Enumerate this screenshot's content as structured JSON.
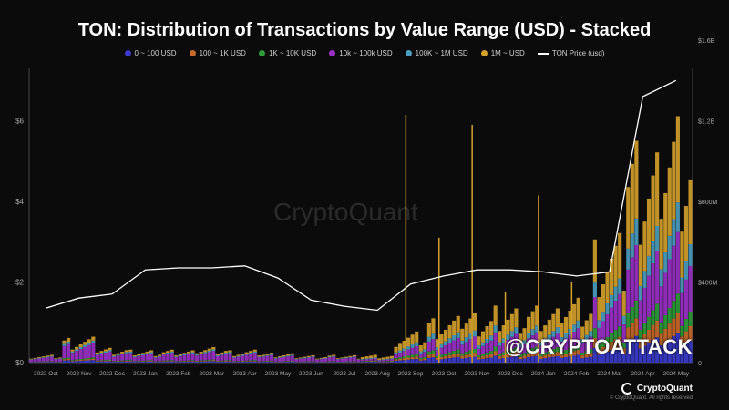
{
  "header": {
    "title": "TON: Distribution of Transactions by Value Range (USD) - Stacked"
  },
  "legend": [
    {
      "label": "0 ~ 100 USD",
      "color": "#3b3ccf"
    },
    {
      "label": "100 ~ 1K USD",
      "color": "#c96a2a"
    },
    {
      "label": "1K ~ 10K USD",
      "color": "#2f9e3a"
    },
    {
      "label": "10k ~ 100k USD",
      "color": "#9b30c8"
    },
    {
      "label": "100K ~ 1M USD",
      "color": "#4a9fc0"
    },
    {
      "label": "1M ~ USD",
      "color": "#d4a12a"
    },
    {
      "label": "TON Price (usd)",
      "color": "#ffffff"
    }
  ],
  "watermark": "CryptoQuant",
  "overlay_handle": "@CRYPTOATTACK",
  "brand": {
    "name": "CryptoQuant",
    "copyright": "© CryptoQuant. All rights reserved"
  },
  "chart_data": {
    "type": "bar",
    "x_ticks": [
      "2022 Oct",
      "2022 Nov",
      "2022 Dec",
      "2023 Jan",
      "2023 Feb",
      "2023 Mar",
      "2023 Apr",
      "2023 May",
      "2023 Jun",
      "2023 Jul",
      "2023 Aug",
      "2023 Sep",
      "2023 Oct",
      "2023 Nov",
      "2023 Dec",
      "2024 Jan",
      "2024 Feb",
      "2024 Mar",
      "2024 Apr",
      "2024 May"
    ],
    "y_left": {
      "ticks": [
        "$0",
        "$2",
        "$4",
        "$6"
      ],
      "range": [
        0,
        7.3
      ]
    },
    "y_right": {
      "ticks": [
        "0",
        "$400M",
        "$800M",
        "$1.2B",
        "$1.6B"
      ],
      "range": [
        0,
        1.46
      ]
    },
    "stacked_series_totals": {
      "unit": "USD billions (right axis)",
      "monthly": [
        0.03,
        0.1,
        0.06,
        0.05,
        0.05,
        0.06,
        0.05,
        0.04,
        0.03,
        0.03,
        0.03,
        0.12,
        0.18,
        0.2,
        0.22,
        0.22,
        0.25,
        0.5,
        0.9,
        1.0
      ]
    },
    "spikes": [
      {
        "month": "2023 Sep",
        "value": 1.23
      },
      {
        "month": "2023 Oct",
        "value": 0.62
      },
      {
        "month": "2023 Nov",
        "value": 1.18
      },
      {
        "month": "2023 Dec",
        "value": 0.35
      },
      {
        "month": "2024 Jan",
        "value": 0.83
      },
      {
        "month": "2024 Feb",
        "value": 0.4
      }
    ],
    "price": {
      "name": "TON Price (usd)",
      "points": [
        [
          "2022 Oct",
          1.35
        ],
        [
          "2022 Nov",
          1.6
        ],
        [
          "2022 Dec",
          1.7
        ],
        [
          "2023 Jan",
          2.3
        ],
        [
          "2023 Feb",
          2.35
        ],
        [
          "2023 Mar",
          2.35
        ],
        [
          "2023 Apr",
          2.4
        ],
        [
          "2023 May",
          2.1
        ],
        [
          "2023 Jun",
          1.55
        ],
        [
          "2023 Jul",
          1.4
        ],
        [
          "2023 Aug",
          1.3
        ],
        [
          "2023 Sep",
          1.95
        ],
        [
          "2023 Oct",
          2.15
        ],
        [
          "2023 Nov",
          2.3
        ],
        [
          "2023 Dec",
          2.3
        ],
        [
          "2024 Jan",
          2.25
        ],
        [
          "2024 Feb",
          2.15
        ],
        [
          "2024 Mar",
          2.25
        ],
        [
          "2024 Apr",
          6.6
        ],
        [
          "2024 May",
          7.0
        ]
      ]
    }
  }
}
